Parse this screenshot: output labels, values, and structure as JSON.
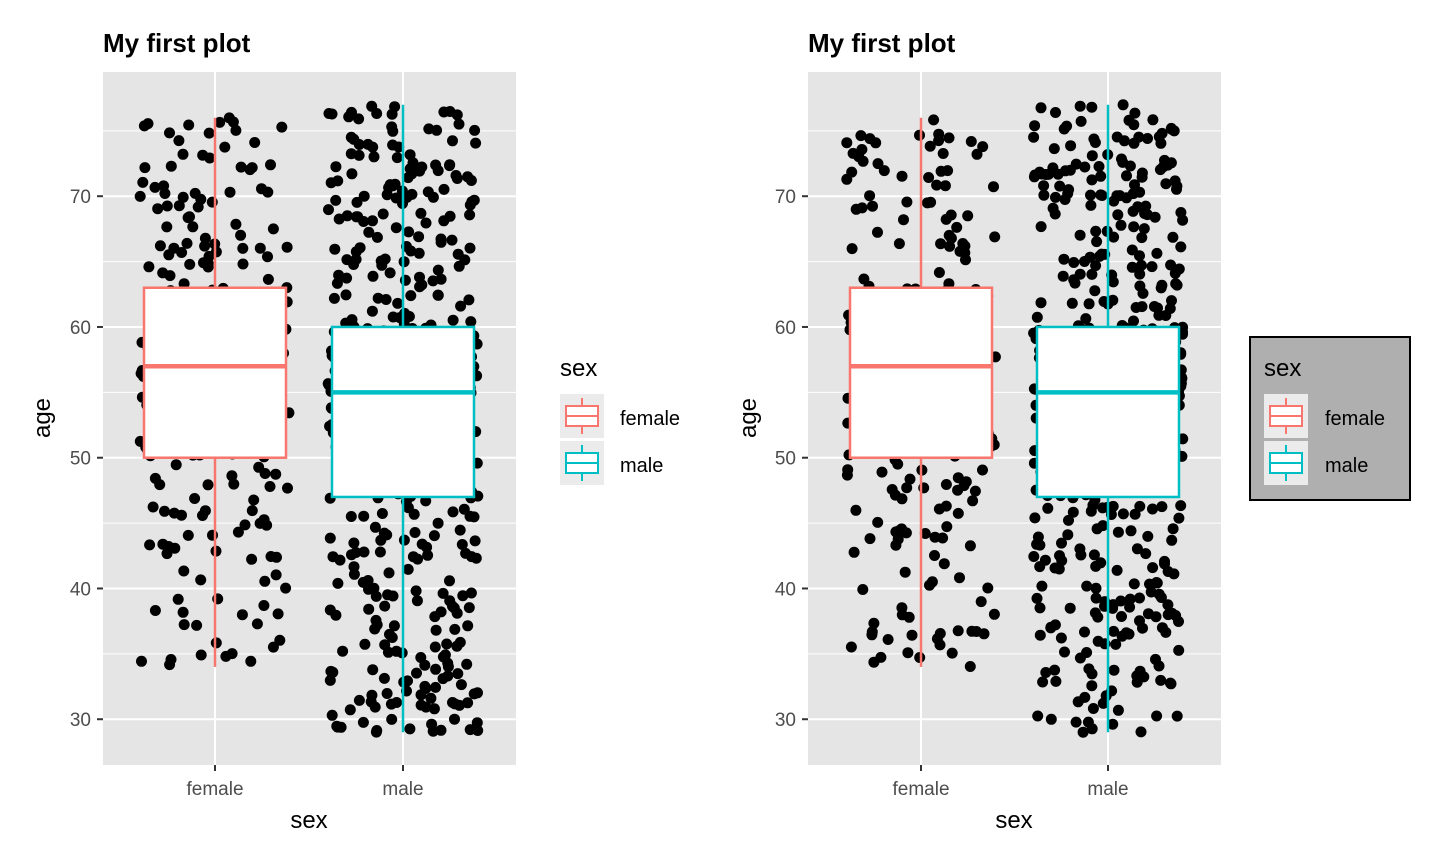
{
  "colors": {
    "panel_bg": "#E5E5E5",
    "grid": "#FFFFFF",
    "female": "#F8766D",
    "male": "#00BFC4",
    "point": "#000000",
    "legend_key_bg": "#EBEBEB",
    "legend_box_bg": "#AFAFAF",
    "legend_box_border": "#000000",
    "tick_text": "#4D4D4D"
  },
  "chart_data": [
    {
      "type": "boxplot",
      "title": "My first plot",
      "xlabel": "sex",
      "ylabel": "age",
      "categories": [
        "female",
        "male"
      ],
      "ylim": [
        26.5,
        79.5
      ],
      "yticks": [
        30,
        40,
        50,
        60,
        70
      ],
      "grid": true,
      "jitter_points": true,
      "boxes": [
        {
          "category": "female",
          "whisker_low": 34,
          "q1": 50,
          "median": 57,
          "q3": 63,
          "whisker_high": 76
        },
        {
          "category": "male",
          "whisker_low": 29,
          "q1": 47,
          "median": 55,
          "q3": 60,
          "whisker_high": 77
        }
      ],
      "legend": {
        "title": "sex",
        "entries": [
          "female",
          "male"
        ],
        "position": "right",
        "style": "plain"
      }
    },
    {
      "type": "boxplot",
      "title": "My first plot",
      "xlabel": "sex",
      "ylabel": "age",
      "categories": [
        "female",
        "male"
      ],
      "ylim": [
        26.5,
        79.5
      ],
      "yticks": [
        30,
        40,
        50,
        60,
        70
      ],
      "grid": true,
      "jitter_points": true,
      "boxes": [
        {
          "category": "female",
          "whisker_low": 34,
          "q1": 50,
          "median": 57,
          "q3": 63,
          "whisker_high": 76
        },
        {
          "category": "male",
          "whisker_low": 29,
          "q1": 47,
          "median": 55,
          "q3": 60,
          "whisker_high": 77
        }
      ],
      "legend": {
        "title": "sex",
        "entries": [
          "female",
          "male"
        ],
        "position": "right",
        "style": "boxed-grey"
      }
    }
  ]
}
